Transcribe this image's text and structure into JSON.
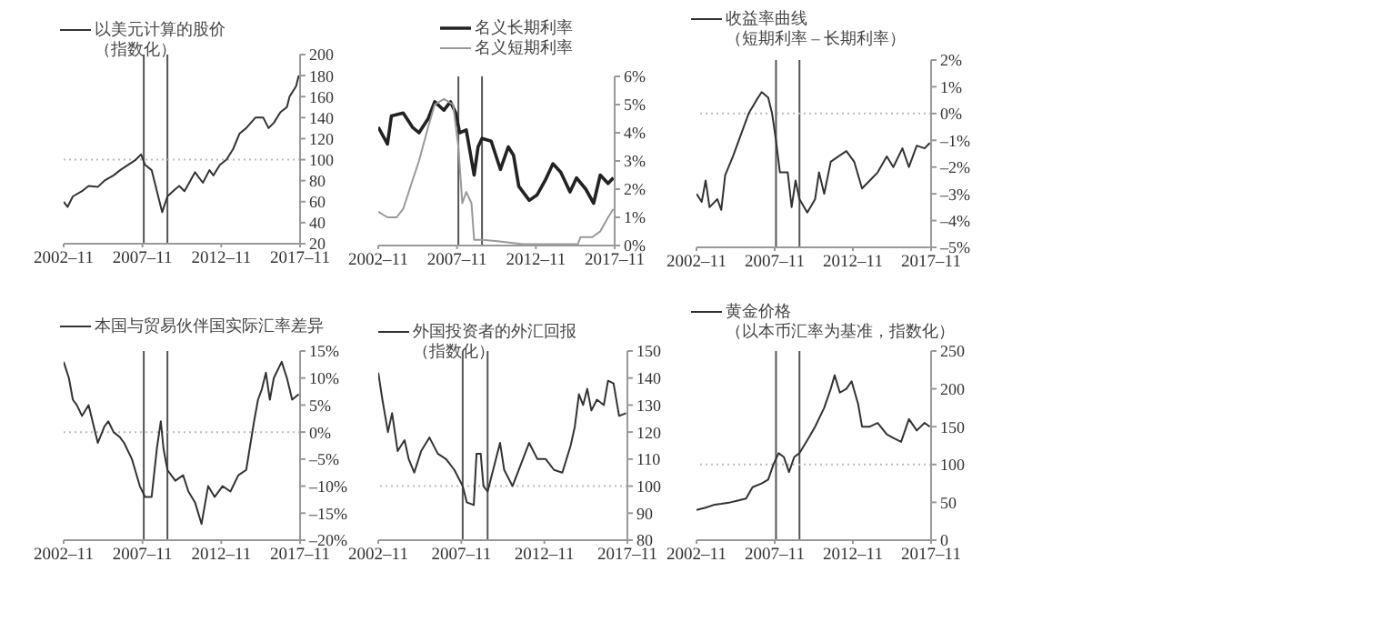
{
  "chart_data": [
    {
      "type": "line",
      "legend": "top",
      "xlim": [
        "2002-11",
        "2017-11"
      ],
      "xticks": [
        {
          "value": "2002-11",
          "label": "2002–11"
        },
        {
          "value": "2007-11",
          "label": "2007–11"
        },
        {
          "value": "2012-11",
          "label": "2012–11"
        },
        {
          "value": "2017-11",
          "label": "2017–11"
        }
      ],
      "ylim": [
        20,
        200
      ],
      "yticks": [
        20,
        40,
        60,
        80,
        100,
        120,
        140,
        160,
        180,
        200
      ],
      "ref_lines": [
        {
          "axis": "x",
          "value": "2007-12",
          "color": "#555555",
          "line_style": "solid"
        },
        {
          "axis": "x",
          "value": "2009-06",
          "color": "#555555",
          "line_style": "solid"
        },
        {
          "axis": "y",
          "value": 100,
          "color": "#bbbbbb",
          "line_style": "dotted"
        }
      ],
      "x": [
        "2002-11",
        "2003-02",
        "2003-06",
        "2004-01",
        "2004-06",
        "2005-01",
        "2005-06",
        "2006-01",
        "2006-06",
        "2007-06",
        "2007-10",
        "2008-01",
        "2008-06",
        "2008-10",
        "2009-02",
        "2009-06",
        "2009-12",
        "2010-03",
        "2010-07",
        "2011-03",
        "2011-09",
        "2012-02",
        "2012-05",
        "2012-10",
        "2013-03",
        "2013-08",
        "2014-01",
        "2014-06",
        "2015-01",
        "2015-07",
        "2015-11",
        "2016-03",
        "2016-08",
        "2017-01",
        "2017-03",
        "2017-08",
        "2017-10"
      ],
      "series": [
        {
          "name": "以美元计算的股价（指数化）",
          "color": "#333333",
          "values": [
            60,
            55,
            65,
            70,
            75,
            74,
            80,
            85,
            90,
            100,
            105,
            95,
            90,
            70,
            50,
            65,
            72,
            75,
            70,
            88,
            78,
            90,
            85,
            95,
            100,
            110,
            125,
            130,
            140,
            140,
            130,
            135,
            145,
            150,
            160,
            170,
            180
          ]
        }
      ]
    },
    {
      "type": "line",
      "legend": "top",
      "xlim": [
        "2002-11",
        "2017-11"
      ],
      "xticks": [
        {
          "value": "2002-11",
          "label": "2002–11"
        },
        {
          "value": "2007-11",
          "label": "2007–11"
        },
        {
          "value": "2012-11",
          "label": "2012–11"
        },
        {
          "value": "2017-11",
          "label": "2017–11"
        }
      ],
      "ylim": [
        0,
        6
      ],
      "yticks": [
        {
          "value": 0,
          "label": "0%"
        },
        {
          "value": 1,
          "label": "1%"
        },
        {
          "value": 2,
          "label": "2%"
        },
        {
          "value": 3,
          "label": "3%"
        },
        {
          "value": 4,
          "label": "4%"
        },
        {
          "value": 5,
          "label": "5%"
        },
        {
          "value": 6,
          "label": "6%"
        }
      ],
      "ref_lines": [
        {
          "axis": "x",
          "value": "2007-12",
          "color": "#555555",
          "line_style": "solid"
        },
        {
          "axis": "x",
          "value": "2009-06",
          "color": "#555555",
          "line_style": "solid"
        }
      ],
      "series": [
        {
          "name": "名义长期利率",
          "color": "#222222",
          "x": [
            "2002-11",
            "2003-06",
            "2003-09",
            "2004-06",
            "2005-01",
            "2005-06",
            "2006-01",
            "2006-06",
            "2007-01",
            "2007-06",
            "2007-10",
            "2008-01",
            "2008-06",
            "2008-12",
            "2009-03",
            "2009-06",
            "2010-01",
            "2010-08",
            "2011-02",
            "2011-06",
            "2011-10",
            "2012-06",
            "2012-12",
            "2013-06",
            "2013-12",
            "2014-06",
            "2015-01",
            "2015-06",
            "2016-01",
            "2016-07",
            "2016-12",
            "2017-06",
            "2017-10"
          ],
          "values": [
            4.2,
            3.6,
            4.6,
            4.7,
            4.2,
            4.0,
            4.5,
            5.1,
            4.8,
            5.1,
            4.7,
            4.0,
            4.1,
            2.5,
            3.5,
            3.8,
            3.7,
            2.7,
            3.5,
            3.2,
            2.1,
            1.6,
            1.8,
            2.3,
            2.9,
            2.6,
            1.9,
            2.4,
            2.0,
            1.5,
            2.5,
            2.2,
            2.4
          ]
        },
        {
          "name": "名义短期利率",
          "color": "#999999",
          "x": [
            "2002-11",
            "2003-06",
            "2004-01",
            "2004-06",
            "2005-01",
            "2005-06",
            "2006-01",
            "2006-06",
            "2007-01",
            "2007-08",
            "2007-12",
            "2008-03",
            "2008-06",
            "2008-10",
            "2008-12",
            "2009-06",
            "2010-06",
            "2012-01",
            "2015-07",
            "2015-09",
            "2016-06",
            "2016-12",
            "2017-06",
            "2017-10"
          ],
          "values": [
            1.2,
            1.0,
            1.0,
            1.3,
            2.3,
            3.0,
            4.2,
            5.0,
            5.2,
            5.0,
            3.5,
            1.5,
            1.9,
            1.5,
            0.2,
            0.2,
            0.15,
            0.05,
            0.05,
            0.3,
            0.3,
            0.5,
            1.0,
            1.3
          ]
        }
      ]
    },
    {
      "type": "line",
      "legend": "top",
      "xlim": [
        "2002-11",
        "2017-11"
      ],
      "xticks": [
        {
          "value": "2002-11",
          "label": "2002–11"
        },
        {
          "value": "2007-11",
          "label": "2007–11"
        },
        {
          "value": "2012-11",
          "label": "2012–11"
        },
        {
          "value": "2017-11",
          "label": "2017–11"
        }
      ],
      "ylim": [
        -5,
        2
      ],
      "yticks": [
        {
          "value": -5,
          "label": "–5%"
        },
        {
          "value": -4,
          "label": "–4%"
        },
        {
          "value": -3,
          "label": "–3%"
        },
        {
          "value": -2,
          "label": "–2%"
        },
        {
          "value": -1,
          "label": "–1%"
        },
        {
          "value": 0,
          "label": "0%"
        },
        {
          "value": 1,
          "label": "1%"
        },
        {
          "value": 2,
          "label": "2%"
        }
      ],
      "ref_lines": [
        {
          "axis": "x",
          "value": "2007-12",
          "color": "#555555",
          "line_style": "solid"
        },
        {
          "axis": "x",
          "value": "2009-06",
          "color": "#555555",
          "line_style": "solid"
        },
        {
          "axis": "y",
          "value": 0,
          "color": "#bbbbbb",
          "line_style": "dotted"
        }
      ],
      "x": [
        "2002-11",
        "2003-03",
        "2003-06",
        "2003-09",
        "2004-03",
        "2004-06",
        "2004-09",
        "2005-03",
        "2005-09",
        "2006-03",
        "2006-09",
        "2007-01",
        "2007-06",
        "2007-09",
        "2007-12",
        "2008-03",
        "2008-09",
        "2008-12",
        "2009-03",
        "2009-06",
        "2009-12",
        "2010-06",
        "2010-09",
        "2011-01",
        "2011-06",
        "2011-12",
        "2012-06",
        "2012-12",
        "2013-06",
        "2013-12",
        "2014-06",
        "2015-01",
        "2015-06",
        "2016-01",
        "2016-06",
        "2016-12",
        "2017-06",
        "2017-10"
      ],
      "series": [
        {
          "name": "收益率曲线（短期利率 – 长期利率）",
          "color": "#333333",
          "values": [
            -3.0,
            -3.3,
            -2.5,
            -3.5,
            -3.2,
            -3.6,
            -2.3,
            -1.6,
            -0.8,
            0.0,
            0.5,
            0.8,
            0.6,
            0.0,
            -1.0,
            -2.2,
            -2.2,
            -3.5,
            -2.5,
            -3.2,
            -3.7,
            -3.2,
            -2.2,
            -3.0,
            -1.8,
            -1.6,
            -1.4,
            -1.8,
            -2.8,
            -2.5,
            -2.2,
            -1.6,
            -2.0,
            -1.3,
            -2.0,
            -1.2,
            -1.3,
            -1.1
          ]
        }
      ]
    },
    {
      "type": "line",
      "legend": "top",
      "xlim": [
        "2002-11",
        "2017-11"
      ],
      "xticks": [
        {
          "value": "2002-11",
          "label": "2002–11"
        },
        {
          "value": "2007-11",
          "label": "2007–11"
        },
        {
          "value": "2012-11",
          "label": "2012–11"
        },
        {
          "value": "2017-11",
          "label": "2017–11"
        }
      ],
      "ylim": [
        -20,
        15
      ],
      "yticks": [
        {
          "value": -20,
          "label": "–20%"
        },
        {
          "value": -15,
          "label": "–15%"
        },
        {
          "value": -10,
          "label": "–10%"
        },
        {
          "value": -5,
          "label": "–5%"
        },
        {
          "value": 0,
          "label": "0%"
        },
        {
          "value": 5,
          "label": "5%"
        },
        {
          "value": 10,
          "label": "10%"
        },
        {
          "value": 15,
          "label": "15%"
        }
      ],
      "ref_lines": [
        {
          "axis": "x",
          "value": "2007-12",
          "color": "#555555",
          "line_style": "solid"
        },
        {
          "axis": "x",
          "value": "2009-06",
          "color": "#555555",
          "line_style": "solid"
        },
        {
          "axis": "y",
          "value": 0,
          "color": "#bbbbbb",
          "line_style": "dotted"
        }
      ],
      "x": [
        "2002-11",
        "2003-03",
        "2003-06",
        "2003-09",
        "2004-01",
        "2004-06",
        "2004-09",
        "2005-01",
        "2005-06",
        "2005-09",
        "2006-01",
        "2006-06",
        "2006-09",
        "2007-03",
        "2007-09",
        "2008-01",
        "2008-06",
        "2008-10",
        "2009-01",
        "2009-03",
        "2009-06",
        "2009-12",
        "2010-06",
        "2010-10",
        "2011-03",
        "2011-08",
        "2012-01",
        "2012-06",
        "2012-12",
        "2013-06",
        "2013-12",
        "2014-06",
        "2014-12",
        "2015-03",
        "2015-06",
        "2015-09",
        "2015-12",
        "2016-03",
        "2016-09",
        "2017-01",
        "2017-05",
        "2017-10"
      ],
      "series": [
        {
          "name": "本国与贸易伙伴国实际汇率差异",
          "color": "#333333",
          "values": [
            13,
            10,
            6,
            5,
            3,
            5,
            2,
            -2,
            1,
            2,
            0,
            -1,
            -2,
            -5,
            -10,
            -12,
            -12,
            -3,
            2,
            -3,
            -7,
            -9,
            -8,
            -11,
            -13,
            -17,
            -10,
            -12,
            -10,
            -11,
            -8,
            -7,
            2,
            6,
            8,
            11,
            6,
            10,
            13,
            10,
            6,
            7
          ]
        }
      ]
    },
    {
      "type": "line",
      "legend": "top",
      "xlim": [
        "2002-11",
        "2017-11"
      ],
      "xticks": [
        {
          "value": "2002-11",
          "label": "2002–11"
        },
        {
          "value": "2007-11",
          "label": "2007–11"
        },
        {
          "value": "2012-11",
          "label": "2012–11"
        },
        {
          "value": "2017-11",
          "label": "2017–11"
        }
      ],
      "ylim": [
        80,
        150
      ],
      "yticks": [
        80,
        90,
        100,
        110,
        120,
        130,
        140,
        150
      ],
      "ref_lines": [
        {
          "axis": "x",
          "value": "2007-12",
          "color": "#555555",
          "line_style": "solid"
        },
        {
          "axis": "x",
          "value": "2009-06",
          "color": "#555555",
          "line_style": "solid"
        },
        {
          "axis": "y",
          "value": 100,
          "color": "#bbbbbb",
          "line_style": "dotted"
        }
      ],
      "x": [
        "2002-11",
        "2003-02",
        "2003-06",
        "2003-09",
        "2004-01",
        "2004-06",
        "2004-09",
        "2005-01",
        "2005-06",
        "2005-12",
        "2006-06",
        "2006-12",
        "2007-06",
        "2007-12",
        "2008-03",
        "2008-08",
        "2008-10",
        "2009-01",
        "2009-03",
        "2009-06",
        "2009-12",
        "2010-03",
        "2010-06",
        "2010-12",
        "2011-06",
        "2011-12",
        "2012-06",
        "2012-12",
        "2013-06",
        "2013-12",
        "2014-06",
        "2014-09",
        "2014-12",
        "2015-03",
        "2015-06",
        "2015-09",
        "2016-01",
        "2016-06",
        "2016-09",
        "2017-01",
        "2017-05",
        "2017-10"
      ],
      "series": [
        {
          "name": "外国投资者的外汇回报（指数化）",
          "color": "#333333",
          "values": [
            142,
            132,
            120,
            127,
            113,
            117,
            110,
            105,
            113,
            118,
            112,
            110,
            106,
            100,
            94,
            93,
            112,
            112,
            100,
            98,
            110,
            116,
            106,
            100,
            108,
            116,
            110,
            110,
            106,
            105,
            115,
            122,
            134,
            130,
            136,
            128,
            132,
            130,
            139,
            138,
            126,
            127
          ]
        }
      ]
    },
    {
      "type": "line",
      "legend": "top",
      "xlim": [
        "2002-11",
        "2017-11"
      ],
      "xticks": [
        {
          "value": "2002-11",
          "label": "2002–11"
        },
        {
          "value": "2007-11",
          "label": "2007–11"
        },
        {
          "value": "2012-11",
          "label": "2012–11"
        },
        {
          "value": "2017-11",
          "label": "2017–11"
        }
      ],
      "ylim": [
        0,
        250
      ],
      "yticks": [
        0,
        50,
        100,
        150,
        200,
        250
      ],
      "ref_lines": [
        {
          "axis": "x",
          "value": "2007-12",
          "color": "#555555",
          "line_style": "solid"
        },
        {
          "axis": "x",
          "value": "2009-06",
          "color": "#555555",
          "line_style": "solid"
        },
        {
          "axis": "y",
          "value": 100,
          "color": "#bbbbbb",
          "line_style": "dotted"
        }
      ],
      "x": [
        "2002-11",
        "2003-06",
        "2004-01",
        "2004-06",
        "2005-01",
        "2005-06",
        "2006-01",
        "2006-06",
        "2007-01",
        "2007-06",
        "2007-10",
        "2008-02",
        "2008-06",
        "2008-10",
        "2009-02",
        "2009-06",
        "2010-01",
        "2010-06",
        "2011-01",
        "2011-06",
        "2011-09",
        "2012-01",
        "2012-06",
        "2012-10",
        "2013-03",
        "2013-06",
        "2013-12",
        "2014-06",
        "2015-01",
        "2015-06",
        "2015-12",
        "2016-06",
        "2016-12",
        "2017-06",
        "2017-10"
      ],
      "series": [
        {
          "name": "黄金价格（以本币汇率为基准，指数化）",
          "color": "#333333",
          "values": [
            40,
            43,
            47,
            48,
            50,
            52,
            55,
            70,
            75,
            80,
            100,
            115,
            110,
            90,
            110,
            115,
            135,
            150,
            175,
            200,
            218,
            195,
            200,
            210,
            180,
            150,
            150,
            155,
            140,
            135,
            130,
            160,
            145,
            155,
            150
          ]
        }
      ]
    }
  ]
}
